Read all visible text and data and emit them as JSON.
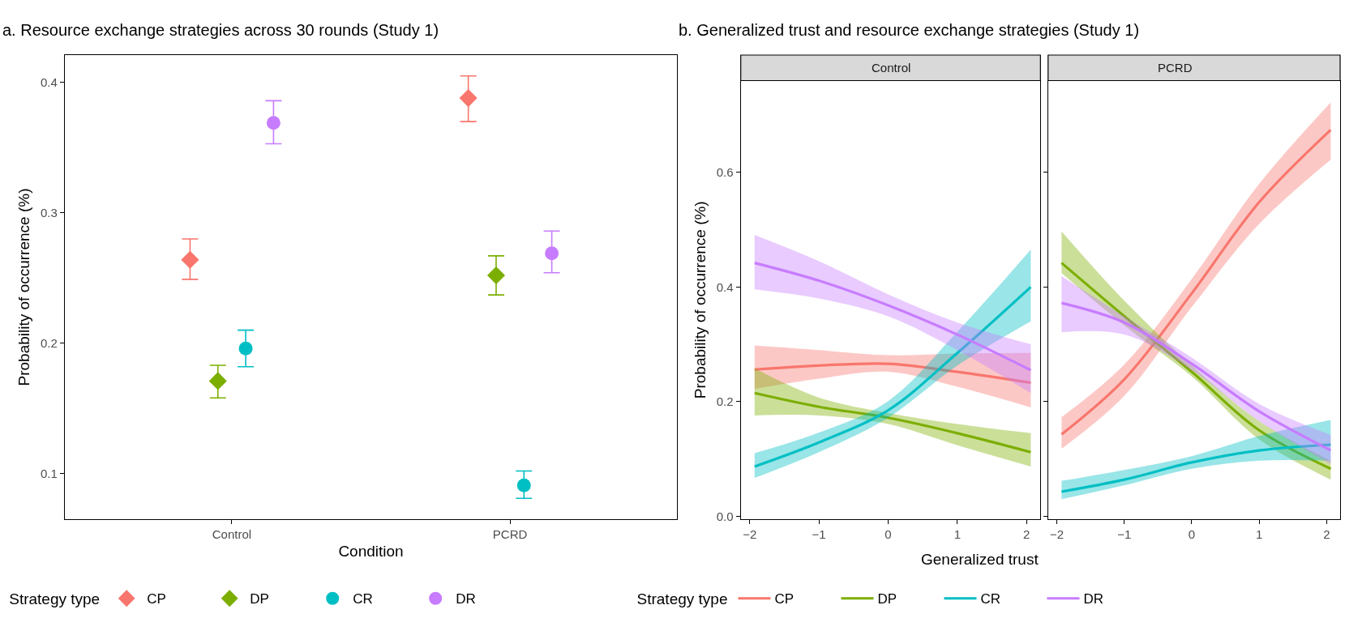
{
  "chart_data": [
    {
      "type": "scatter",
      "title": "a. Resource exchange strategies across 30 rounds (Study 1)",
      "xlabel": "Condition",
      "ylabel": "Probability of occurrence (%)",
      "legend_title": "Strategy type",
      "legend": "bottom left",
      "categories": [
        "Control",
        "PCRD"
      ],
      "ylim": [
        0.065,
        0.421
      ],
      "yticks": [
        0.1,
        0.2,
        0.3,
        0.4
      ],
      "series": [
        {
          "name": "CP",
          "color": "#f8766d",
          "marker": "diamond",
          "values": [
            0.264,
            0.388
          ],
          "errors": [
            [
              0.249,
              0.28
            ],
            [
              0.37,
              0.405
            ]
          ]
        },
        {
          "name": "DP",
          "color": "#7cae00",
          "marker": "diamond",
          "values": [
            0.171,
            0.252
          ],
          "errors": [
            [
              0.158,
              0.183
            ],
            [
              0.237,
              0.267
            ]
          ]
        },
        {
          "name": "CR",
          "color": "#00bfc4",
          "marker": "circle",
          "values": [
            0.196,
            0.091
          ],
          "errors": [
            [
              0.182,
              0.21
            ],
            [
              0.081,
              0.102
            ]
          ]
        },
        {
          "name": "DR",
          "color": "#c77cff",
          "marker": "circle",
          "values": [
            0.369,
            0.269
          ],
          "errors": [
            [
              0.353,
              0.386
            ],
            [
              0.254,
              0.286
            ]
          ]
        }
      ]
    },
    {
      "type": "line",
      "title": "b. Generalized trust and resource exchange strategies (Study 1)",
      "subtitle": "Control",
      "xlabel": "Generalized trust",
      "ylabel": "Probability of occurrence (%)",
      "legend_title": "Strategy type",
      "legend": "bottom",
      "x": [
        -1.93,
        -1,
        0,
        1,
        2.06
      ],
      "xlim": [
        -2.13,
        2.2
      ],
      "xticks": [
        -2,
        -1,
        0,
        1,
        2
      ],
      "ylim": [
        -0.005,
        0.76
      ],
      "yticks": [
        {
          "value": 0,
          "label": "0.0"
        },
        0.2,
        0.4,
        0.6
      ],
      "series": [
        {
          "name": "CP",
          "color": "#f8766d",
          "values": [
            0.256,
            0.263,
            0.266,
            0.252,
            0.233
          ],
          "lower": [
            0.222,
            0.24,
            0.252,
            0.226,
            0.19
          ],
          "upper": [
            0.298,
            0.29,
            0.281,
            0.284,
            0.285
          ]
        },
        {
          "name": "DP",
          "color": "#7cae00",
          "values": [
            0.215,
            0.191,
            0.172,
            0.145,
            0.112
          ],
          "lower": [
            0.176,
            0.176,
            0.161,
            0.124,
            0.087
          ],
          "upper": [
            0.258,
            0.207,
            0.18,
            0.161,
            0.145
          ]
        },
        {
          "name": "CR",
          "color": "#00bfc4",
          "values": [
            0.087,
            0.129,
            0.185,
            0.285,
            0.4
          ],
          "lower": [
            0.067,
            0.112,
            0.172,
            0.263,
            0.34
          ],
          "upper": [
            0.11,
            0.146,
            0.201,
            0.322,
            0.465
          ]
        },
        {
          "name": "DR",
          "color": "#c77cff",
          "values": [
            0.442,
            0.411,
            0.368,
            0.317,
            0.255
          ],
          "lower": [
            0.396,
            0.38,
            0.349,
            0.29,
            0.215
          ],
          "upper": [
            0.491,
            0.445,
            0.387,
            0.338,
            0.3
          ]
        }
      ]
    },
    {
      "type": "line",
      "subtitle": "PCRD",
      "tick_labels": "x",
      "x": [
        -1.93,
        -1,
        0,
        1,
        2.06
      ],
      "xlim": [
        -2.13,
        2.2
      ],
      "xticks": [
        -2,
        -1,
        0,
        1,
        2
      ],
      "ylim": [
        -0.005,
        0.76
      ],
      "yticks": [
        0,
        0.2,
        0.4,
        0.6
      ],
      "series": [
        {
          "color": "#f8766d",
          "values": [
            0.143,
            0.239,
            0.389,
            0.548,
            0.674
          ],
          "lower": [
            0.118,
            0.21,
            0.365,
            0.51,
            0.622
          ],
          "upper": [
            0.173,
            0.265,
            0.414,
            0.58,
            0.722
          ]
        },
        {
          "color": "#7cae00",
          "values": [
            0.442,
            0.349,
            0.252,
            0.15,
            0.083
          ],
          "lower": [
            0.424,
            0.333,
            0.244,
            0.134,
            0.064
          ],
          "upper": [
            0.497,
            0.376,
            0.263,
            0.166,
            0.097
          ]
        },
        {
          "color": "#00bfc4",
          "values": [
            0.043,
            0.064,
            0.094,
            0.115,
            0.125
          ],
          "lower": [
            0.03,
            0.054,
            0.083,
            0.097,
            0.097
          ],
          "upper": [
            0.062,
            0.081,
            0.105,
            0.14,
            0.168
          ]
        },
        {
          "color": "#c77cff",
          "values": [
            0.372,
            0.338,
            0.266,
            0.183,
            0.115
          ],
          "lower": [
            0.321,
            0.317,
            0.255,
            0.166,
            0.091
          ],
          "upper": [
            0.419,
            0.349,
            0.277,
            0.196,
            0.142
          ]
        }
      ]
    }
  ]
}
